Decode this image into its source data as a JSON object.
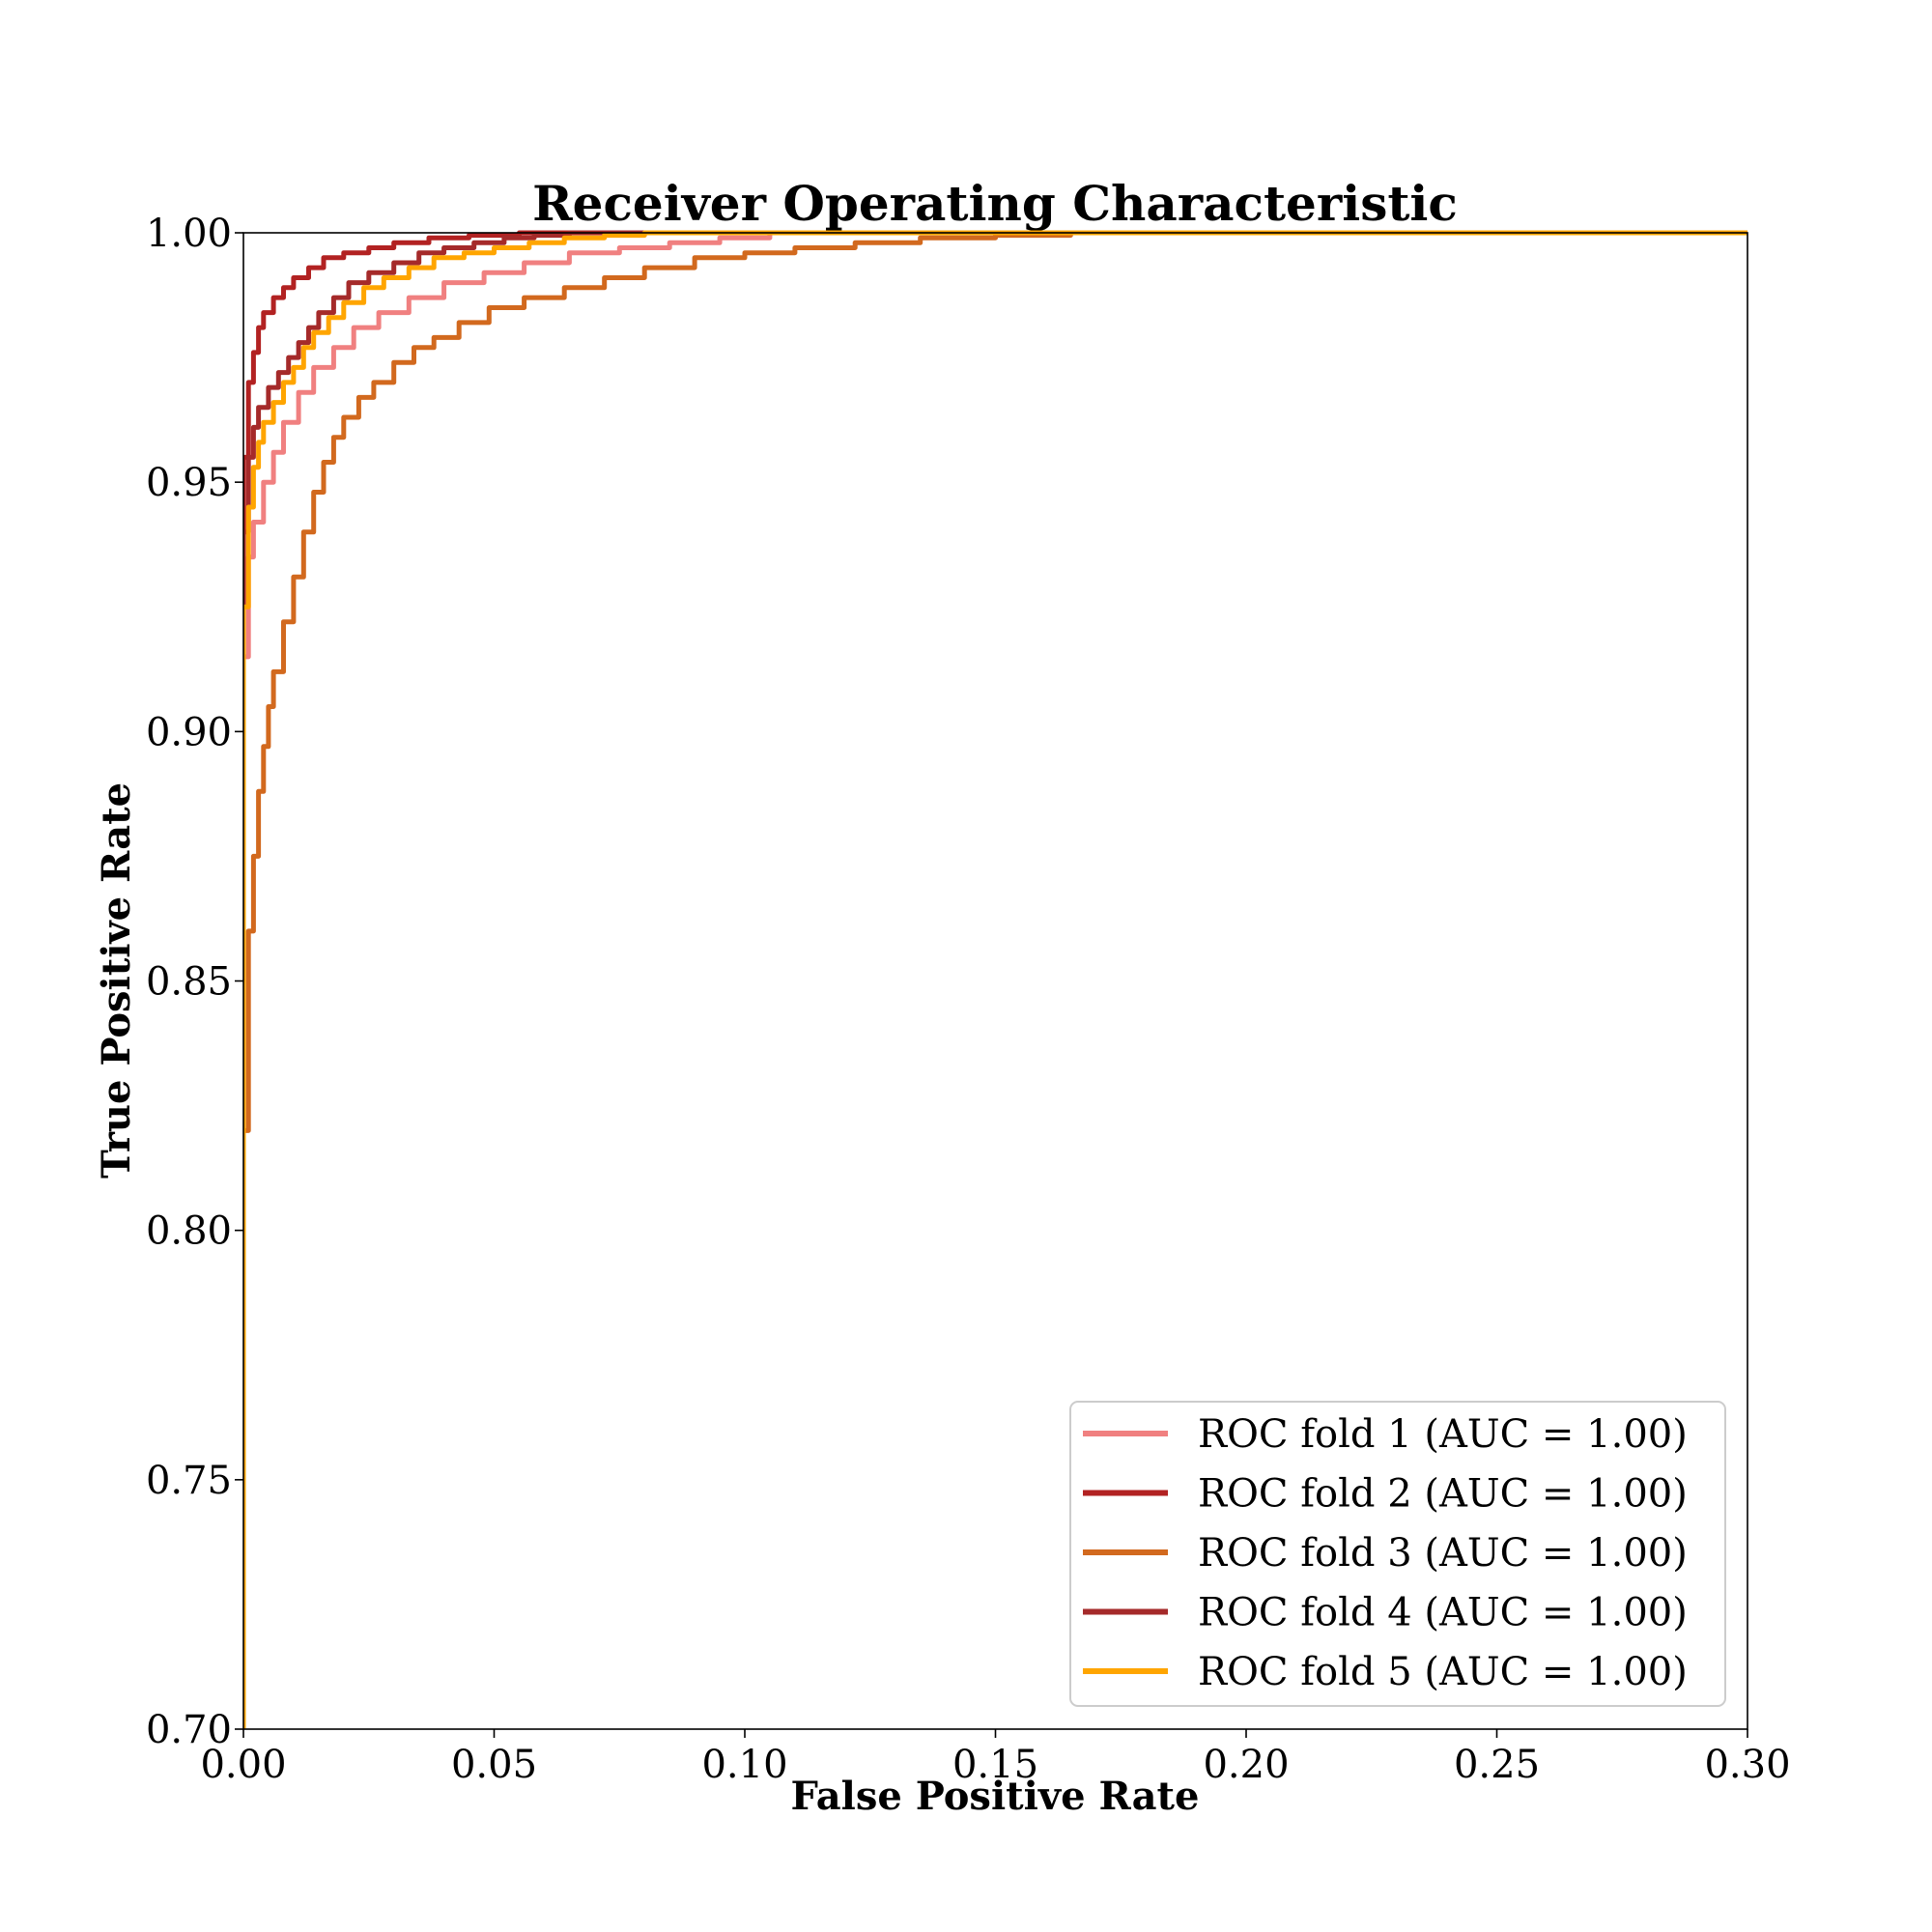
{
  "chart_data": {
    "type": "line",
    "title": "Receiver Operating Characteristic",
    "xlabel": "False Positive Rate",
    "ylabel": "True Positive Rate",
    "xlim": [
      0.0,
      0.3
    ],
    "ylim": [
      0.7,
      1.0
    ],
    "xticks": [
      "0.00",
      "0.05",
      "0.10",
      "0.15",
      "0.20",
      "0.25",
      "0.30"
    ],
    "yticks": [
      "0.70",
      "0.75",
      "0.80",
      "0.85",
      "0.90",
      "0.95",
      "1.00"
    ],
    "legend_position": "lower-right",
    "grid": false,
    "series": [
      {
        "name": "ROC fold 1 (AUC = 1.00)",
        "color": "#F08080",
        "x": [
          0.0,
          0.0,
          0.001,
          0.002,
          0.004,
          0.006,
          0.008,
          0.011,
          0.014,
          0.018,
          0.022,
          0.027,
          0.033,
          0.04,
          0.048,
          0.056,
          0.065,
          0.075,
          0.085,
          0.095,
          0.105,
          0.3
        ],
        "y": [
          0.7,
          0.915,
          0.935,
          0.942,
          0.95,
          0.956,
          0.962,
          0.968,
          0.973,
          0.977,
          0.981,
          0.984,
          0.987,
          0.99,
          0.992,
          0.994,
          0.996,
          0.997,
          0.998,
          0.999,
          1.0,
          1.0
        ]
      },
      {
        "name": "ROC fold 2 (AUC = 1.00)",
        "color": "#B22222",
        "x": [
          0.0,
          0.0,
          0.001,
          0.002,
          0.003,
          0.004,
          0.006,
          0.008,
          0.01,
          0.013,
          0.016,
          0.02,
          0.025,
          0.03,
          0.037,
          0.045,
          0.055,
          0.3
        ],
        "y": [
          0.7,
          0.955,
          0.97,
          0.976,
          0.981,
          0.984,
          0.987,
          0.989,
          0.991,
          0.993,
          0.995,
          0.996,
          0.997,
          0.998,
          0.999,
          0.9995,
          1.0,
          1.0
        ]
      },
      {
        "name": "ROC fold 3 (AUC = 1.00)",
        "color": "#D2691E",
        "x": [
          0.0,
          0.0,
          0.001,
          0.002,
          0.003,
          0.004,
          0.005,
          0.006,
          0.008,
          0.01,
          0.012,
          0.014,
          0.016,
          0.018,
          0.02,
          0.023,
          0.026,
          0.03,
          0.034,
          0.038,
          0.043,
          0.049,
          0.056,
          0.064,
          0.072,
          0.08,
          0.09,
          0.1,
          0.11,
          0.122,
          0.135,
          0.15,
          0.165,
          0.3
        ],
        "y": [
          0.7,
          0.82,
          0.86,
          0.875,
          0.888,
          0.897,
          0.905,
          0.912,
          0.922,
          0.931,
          0.94,
          0.948,
          0.954,
          0.959,
          0.963,
          0.967,
          0.97,
          0.974,
          0.977,
          0.979,
          0.982,
          0.985,
          0.987,
          0.989,
          0.991,
          0.993,
          0.995,
          0.996,
          0.997,
          0.998,
          0.999,
          0.9995,
          1.0,
          1.0
        ]
      },
      {
        "name": "ROC fold 4 (AUC = 1.00)",
        "color": "#A52A2A",
        "x": [
          0.0,
          0.0,
          0.001,
          0.002,
          0.003,
          0.005,
          0.007,
          0.009,
          0.011,
          0.013,
          0.015,
          0.018,
          0.021,
          0.025,
          0.03,
          0.035,
          0.04,
          0.046,
          0.052,
          0.058,
          0.065,
          0.3
        ],
        "y": [
          0.7,
          0.94,
          0.955,
          0.961,
          0.965,
          0.969,
          0.972,
          0.975,
          0.978,
          0.981,
          0.984,
          0.987,
          0.99,
          0.992,
          0.994,
          0.996,
          0.997,
          0.998,
          0.999,
          0.9995,
          1.0,
          1.0
        ]
      },
      {
        "name": "ROC fold 5 (AUC = 1.00)",
        "color": "#FFA500",
        "x": [
          0.0,
          0.0,
          0.001,
          0.002,
          0.003,
          0.004,
          0.006,
          0.008,
          0.01,
          0.012,
          0.014,
          0.017,
          0.02,
          0.024,
          0.028,
          0.033,
          0.038,
          0.044,
          0.05,
          0.057,
          0.064,
          0.072,
          0.08,
          0.3
        ],
        "y": [
          0.7,
          0.925,
          0.945,
          0.953,
          0.958,
          0.962,
          0.966,
          0.97,
          0.973,
          0.977,
          0.98,
          0.983,
          0.986,
          0.989,
          0.991,
          0.993,
          0.995,
          0.996,
          0.997,
          0.998,
          0.999,
          0.9995,
          1.0,
          1.0
        ]
      }
    ]
  }
}
